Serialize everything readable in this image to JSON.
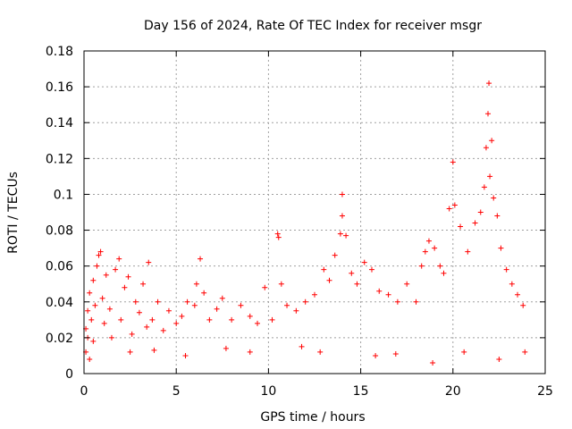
{
  "chart_data": {
    "type": "scatter",
    "title": "Day 156 of 2024, Rate Of TEC Index for receiver msgr",
    "xlabel": "GPS time / hours",
    "ylabel": "ROTI / TECUs",
    "xlim": [
      0,
      25
    ],
    "ylim": [
      0,
      0.18
    ],
    "xticks": [
      "0",
      "5",
      "10",
      "15",
      "20",
      "25"
    ],
    "yticks": [
      "0",
      "0.02",
      "0.04",
      "0.06",
      "0.08",
      "0.1",
      "0.12",
      "0.14",
      "0.16",
      "0.18"
    ],
    "grid": true,
    "marker": "plus",
    "color": "#ff0000",
    "series": [
      {
        "name": "ROTI",
        "points": [
          [
            0.1,
            0.025
          ],
          [
            0.1,
            0.012
          ],
          [
            0.2,
            0.035
          ],
          [
            0.2,
            0.02
          ],
          [
            0.3,
            0.045
          ],
          [
            0.4,
            0.03
          ],
          [
            0.5,
            0.052
          ],
          [
            0.5,
            0.018
          ],
          [
            0.6,
            0.038
          ],
          [
            0.7,
            0.06
          ],
          [
            0.8,
            0.066
          ],
          [
            0.9,
            0.068
          ],
          [
            1.0,
            0.042
          ],
          [
            1.1,
            0.028
          ],
          [
            1.2,
            0.055
          ],
          [
            1.4,
            0.036
          ],
          [
            1.5,
            0.02
          ],
          [
            1.7,
            0.058
          ],
          [
            1.9,
            0.064
          ],
          [
            2.0,
            0.03
          ],
          [
            2.2,
            0.048
          ],
          [
            2.4,
            0.054
          ],
          [
            2.6,
            0.022
          ],
          [
            2.8,
            0.04
          ],
          [
            3.0,
            0.034
          ],
          [
            3.2,
            0.05
          ],
          [
            3.4,
            0.026
          ],
          [
            3.5,
            0.062
          ],
          [
            3.7,
            0.03
          ],
          [
            4.0,
            0.04
          ],
          [
            4.3,
            0.024
          ],
          [
            4.6,
            0.035
          ],
          [
            5.0,
            0.028
          ],
          [
            5.3,
            0.032
          ],
          [
            5.6,
            0.04
          ],
          [
            6.0,
            0.038
          ],
          [
            6.1,
            0.05
          ],
          [
            6.3,
            0.064
          ],
          [
            6.5,
            0.045
          ],
          [
            6.8,
            0.03
          ],
          [
            7.2,
            0.036
          ],
          [
            7.5,
            0.042
          ],
          [
            8.0,
            0.03
          ],
          [
            8.5,
            0.038
          ],
          [
            9.0,
            0.032
          ],
          [
            9.4,
            0.028
          ],
          [
            9.8,
            0.048
          ],
          [
            10.2,
            0.03
          ],
          [
            10.5,
            0.078
          ],
          [
            10.55,
            0.076
          ],
          [
            10.7,
            0.05
          ],
          [
            11.0,
            0.038
          ],
          [
            11.5,
            0.035
          ],
          [
            12.0,
            0.04
          ],
          [
            12.5,
            0.044
          ],
          [
            13.0,
            0.058
          ],
          [
            13.3,
            0.052
          ],
          [
            13.6,
            0.066
          ],
          [
            13.9,
            0.078
          ],
          [
            14.0,
            0.1
          ],
          [
            14.0,
            0.088
          ],
          [
            14.2,
            0.077
          ],
          [
            14.5,
            0.056
          ],
          [
            14.8,
            0.05
          ],
          [
            15.2,
            0.062
          ],
          [
            15.6,
            0.058
          ],
          [
            16.0,
            0.046
          ],
          [
            16.5,
            0.044
          ],
          [
            17.0,
            0.04
          ],
          [
            17.5,
            0.05
          ],
          [
            18.0,
            0.04
          ],
          [
            18.3,
            0.06
          ],
          [
            18.5,
            0.068
          ],
          [
            18.7,
            0.074
          ],
          [
            19.0,
            0.07
          ],
          [
            19.3,
            0.06
          ],
          [
            19.5,
            0.056
          ],
          [
            19.8,
            0.092
          ],
          [
            20.0,
            0.118
          ],
          [
            20.1,
            0.094
          ],
          [
            20.4,
            0.082
          ],
          [
            20.8,
            0.068
          ],
          [
            21.2,
            0.084
          ],
          [
            21.5,
            0.09
          ],
          [
            21.7,
            0.104
          ],
          [
            21.8,
            0.126
          ],
          [
            21.9,
            0.145
          ],
          [
            21.95,
            0.162
          ],
          [
            22.0,
            0.11
          ],
          [
            22.1,
            0.13
          ],
          [
            22.2,
            0.098
          ],
          [
            22.4,
            0.088
          ],
          [
            22.6,
            0.07
          ],
          [
            22.9,
            0.058
          ],
          [
            23.2,
            0.05
          ],
          [
            23.5,
            0.044
          ],
          [
            23.8,
            0.038
          ],
          [
            0.3,
            0.008
          ],
          [
            2.5,
            0.012
          ],
          [
            5.5,
            0.01
          ],
          [
            9.0,
            0.012
          ],
          [
            12.8,
            0.012
          ],
          [
            15.8,
            0.01
          ],
          [
            18.9,
            0.006
          ],
          [
            22.5,
            0.008
          ],
          [
            23.9,
            0.012
          ],
          [
            11.8,
            0.015
          ],
          [
            7.7,
            0.014
          ],
          [
            3.8,
            0.013
          ],
          [
            20.6,
            0.012
          ],
          [
            16.9,
            0.011
          ]
        ]
      }
    ]
  }
}
